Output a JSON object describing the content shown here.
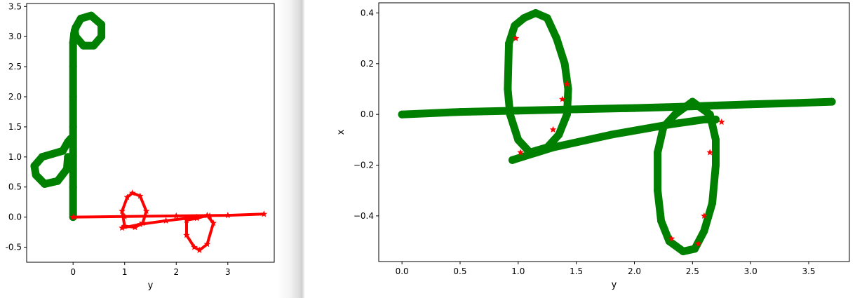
{
  "chart_data": [
    {
      "type": "scatter",
      "xlabel": "y",
      "ylabel": "",
      "xlim": [
        -0.9,
        3.9
      ],
      "ylim": [
        -0.75,
        3.55
      ],
      "x_ticks": [
        {
          "v": 0,
          "label": "0"
        },
        {
          "v": 1,
          "label": "1"
        },
        {
          "v": 2,
          "label": "2"
        },
        {
          "v": 3,
          "label": "3"
        }
      ],
      "y_ticks": [
        {
          "v": -0.5,
          "label": "-0.5"
        },
        {
          "v": 0.0,
          "label": "0.0"
        },
        {
          "v": 0.5,
          "label": "0.5"
        },
        {
          "v": 1.0,
          "label": "1.0"
        },
        {
          "v": 1.5,
          "label": "1.5"
        },
        {
          "v": 2.0,
          "label": "2.0"
        },
        {
          "v": 2.5,
          "label": "2.5"
        },
        {
          "v": 3.0,
          "label": "3.0"
        },
        {
          "v": 3.5,
          "label": "3.5"
        }
      ],
      "grid": false,
      "series": [
        {
          "color": "#008000",
          "marker": "circle",
          "paths": [
            [
              [
                0.0,
                0.0
              ],
              [
                0.0,
                0.5
              ],
              [
                0.0,
                1.0
              ],
              [
                0.0,
                1.5
              ],
              [
                0.0,
                2.0
              ],
              [
                0.0,
                2.5
              ],
              [
                0.0,
                2.9
              ],
              [
                0.02,
                3.05
              ],
              [
                0.05,
                3.15
              ]
            ],
            [
              [
                -0.05,
                1.3
              ],
              [
                -0.1,
                1.25
              ],
              [
                -0.2,
                1.1
              ],
              [
                -0.4,
                1.05
              ],
              [
                -0.6,
                1.0
              ],
              [
                -0.75,
                0.85
              ],
              [
                -0.72,
                0.7
              ],
              [
                -0.55,
                0.55
              ],
              [
                -0.3,
                0.6
              ],
              [
                -0.12,
                0.8
              ],
              [
                -0.1,
                1.0
              ]
            ],
            [
              [
                0.05,
                3.15
              ],
              [
                0.15,
                3.3
              ],
              [
                0.35,
                3.35
              ],
              [
                0.55,
                3.2
              ],
              [
                0.55,
                3.0
              ],
              [
                0.4,
                2.85
              ],
              [
                0.2,
                2.85
              ],
              [
                0.05,
                3.0
              ],
              [
                0.03,
                3.1
              ]
            ]
          ]
        },
        {
          "color": "#ff0000",
          "marker": "star",
          "paths": [
            [
              [
                0.0,
                0.0
              ],
              [
                1.0,
                0.01
              ],
              [
                2.0,
                0.02
              ],
              [
                3.0,
                0.03
              ],
              [
                3.7,
                0.05
              ]
            ],
            [
              [
                0.95,
                -0.18
              ],
              [
                1.3,
                -0.12
              ],
              [
                1.8,
                -0.06
              ],
              [
                2.4,
                0.0
              ],
              [
                2.65,
                0.02
              ]
            ],
            [
              [
                1.0,
                -0.15
              ],
              [
                0.95,
                0.1
              ],
              [
                1.05,
                0.33
              ],
              [
                1.15,
                0.4
              ],
              [
                1.3,
                0.35
              ],
              [
                1.42,
                0.1
              ],
              [
                1.35,
                -0.1
              ],
              [
                1.2,
                -0.17
              ],
              [
                1.0,
                -0.15
              ]
            ],
            [
              [
                2.2,
                -0.05
              ],
              [
                2.2,
                -0.3
              ],
              [
                2.35,
                -0.5
              ],
              [
                2.45,
                -0.55
              ],
              [
                2.6,
                -0.45
              ],
              [
                2.72,
                -0.1
              ],
              [
                2.6,
                0.03
              ],
              [
                2.4,
                -0.02
              ],
              [
                2.2,
                -0.05
              ]
            ]
          ]
        }
      ]
    },
    {
      "type": "scatter",
      "xlabel": "y",
      "ylabel": "x",
      "xlim": [
        -0.2,
        3.85
      ],
      "ylim": [
        -0.58,
        0.44
      ],
      "x_ticks": [
        {
          "v": 0.0,
          "label": "0.0"
        },
        {
          "v": 0.5,
          "label": "0.5"
        },
        {
          "v": 1.0,
          "label": "1.0"
        },
        {
          "v": 1.5,
          "label": "1.5"
        },
        {
          "v": 2.0,
          "label": "2.0"
        },
        {
          "v": 2.5,
          "label": "2.5"
        },
        {
          "v": 3.0,
          "label": "3.0"
        },
        {
          "v": 3.5,
          "label": "3.5"
        }
      ],
      "y_ticks": [
        {
          "v": -0.4,
          "label": "−0.4"
        },
        {
          "v": -0.2,
          "label": "−0.2"
        },
        {
          "v": 0.0,
          "label": "0.0"
        },
        {
          "v": 0.2,
          "label": "0.2"
        },
        {
          "v": 0.4,
          "label": "0.4"
        }
      ],
      "grid": false,
      "series": [
        {
          "color": "#008000",
          "marker": "circle",
          "paths": [
            [
              [
                0.0,
                0.0
              ],
              [
                0.5,
                0.01
              ],
              [
                1.0,
                0.015
              ],
              [
                1.5,
                0.02
              ],
              [
                2.0,
                0.025
              ],
              [
                2.4,
                0.03
              ],
              [
                2.7,
                0.035
              ],
              [
                3.0,
                0.04
              ],
              [
                3.4,
                0.045
              ],
              [
                3.7,
                0.05
              ]
            ],
            [
              [
                0.95,
                -0.18
              ],
              [
                1.3,
                -0.13
              ],
              [
                1.8,
                -0.08
              ],
              [
                2.3,
                -0.04
              ],
              [
                2.6,
                -0.02
              ],
              [
                2.7,
                -0.02
              ]
            ],
            [
              [
                1.1,
                -0.15
              ],
              [
                1.0,
                -0.1
              ],
              [
                0.93,
                0.0
              ],
              [
                0.91,
                0.1
              ],
              [
                0.92,
                0.28
              ],
              [
                0.97,
                0.35
              ],
              [
                1.05,
                0.38
              ],
              [
                1.15,
                0.4
              ],
              [
                1.25,
                0.38
              ],
              [
                1.33,
                0.3
              ],
              [
                1.4,
                0.2
              ],
              [
                1.43,
                0.1
              ],
              [
                1.42,
                0.0
              ],
              [
                1.35,
                -0.08
              ],
              [
                1.25,
                -0.13
              ],
              [
                1.1,
                -0.15
              ]
            ],
            [
              [
                2.5,
                0.05
              ],
              [
                2.35,
                0.0
              ],
              [
                2.25,
                -0.05
              ],
              [
                2.2,
                -0.15
              ],
              [
                2.2,
                -0.3
              ],
              [
                2.23,
                -0.42
              ],
              [
                2.3,
                -0.5
              ],
              [
                2.42,
                -0.54
              ],
              [
                2.52,
                -0.53
              ],
              [
                2.6,
                -0.46
              ],
              [
                2.67,
                -0.35
              ],
              [
                2.7,
                -0.2
              ],
              [
                2.7,
                -0.1
              ],
              [
                2.65,
                0.0
              ],
              [
                2.5,
                0.05
              ]
            ]
          ]
        },
        {
          "color": "#ff0000",
          "marker": "star",
          "paths": [
            [
              [
                0.98,
                0.3
              ],
              [
                1.02,
                -0.15
              ],
              [
                1.3,
                -0.06
              ],
              [
                1.38,
                0.06
              ],
              [
                1.42,
                0.12
              ],
              [
                2.32,
                -0.49
              ],
              [
                2.55,
                -0.51
              ],
              [
                2.6,
                -0.4
              ],
              [
                2.65,
                -0.15
              ],
              [
                2.75,
                -0.03
              ]
            ]
          ]
        }
      ]
    }
  ]
}
